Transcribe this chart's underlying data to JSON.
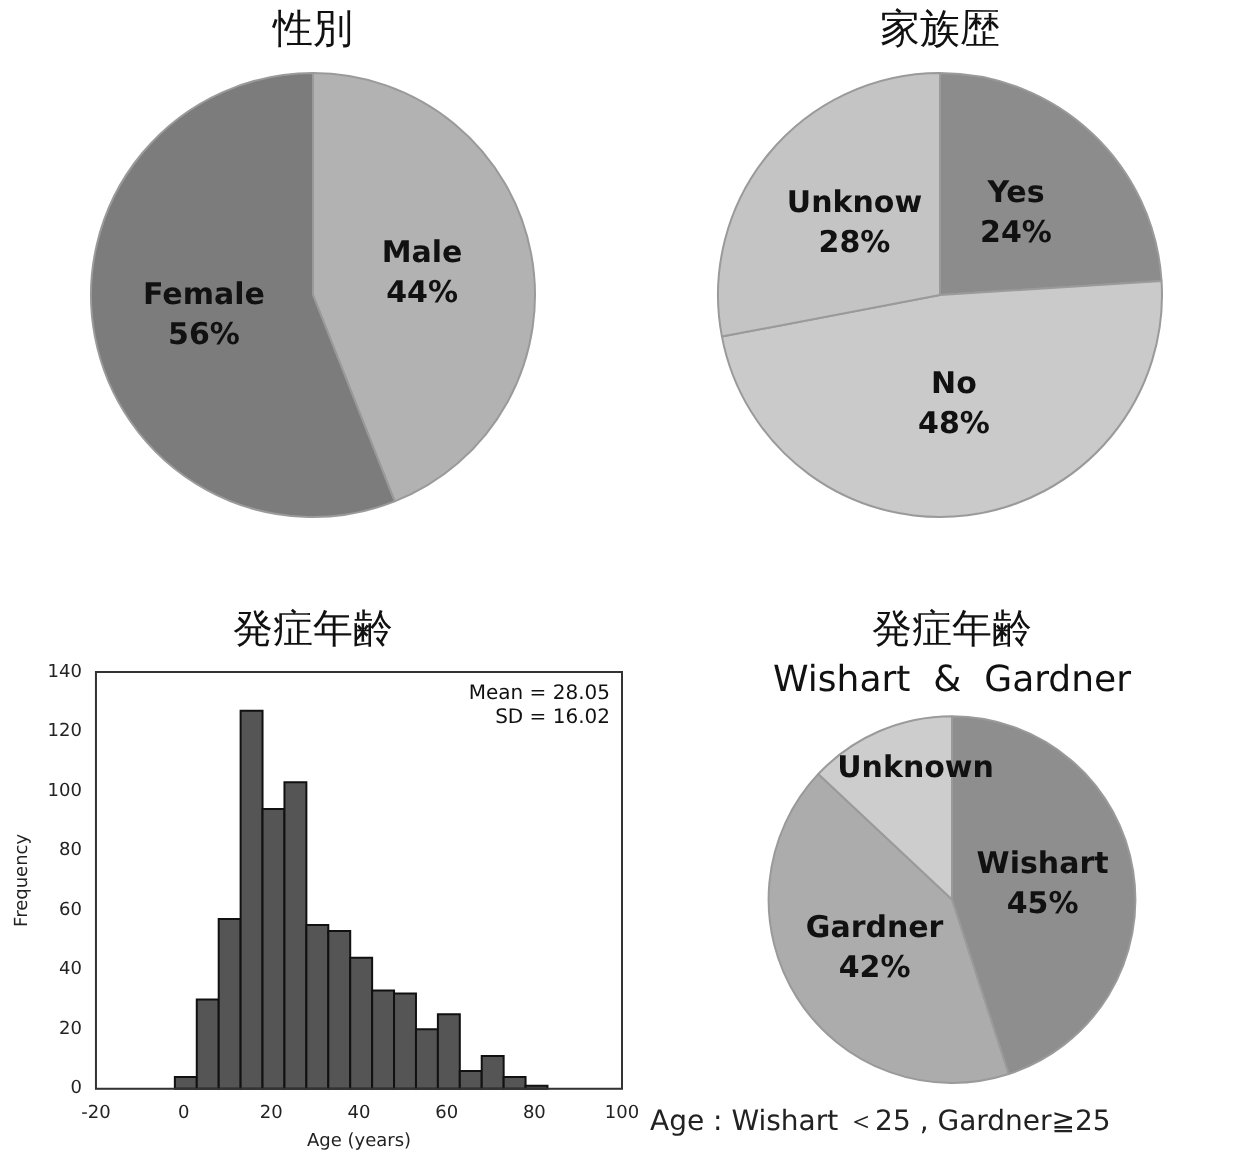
{
  "chart_data": [
    {
      "type": "pie",
      "title": "性別",
      "categories": [
        "Male",
        "Female"
      ],
      "values": [
        44,
        56
      ],
      "colors": [
        "#b2b2b2",
        "#7c7c7c"
      ],
      "value_labels": [
        "44%",
        "56%"
      ],
      "legend": false
    },
    {
      "type": "pie",
      "title": "家族歴",
      "categories": [
        "Yes",
        "No",
        "Unknow"
      ],
      "values": [
        24,
        48,
        28
      ],
      "colors": [
        "#8c8c8c",
        "#cacaca",
        "#c4c4c4"
      ],
      "value_labels": [
        "24%",
        "48%",
        "28%"
      ],
      "legend": false
    },
    {
      "type": "histogram",
      "title": "発症年齢",
      "xlabel": "Age (years)",
      "ylabel": "Frequency",
      "bins": [
        -2,
        3,
        8,
        13,
        18,
        23,
        28,
        33,
        38,
        43,
        48,
        53,
        58,
        63,
        68,
        73,
        78,
        83
      ],
      "values": [
        4,
        30,
        57,
        127,
        94,
        103,
        55,
        53,
        44,
        33,
        32,
        20,
        25,
        6,
        11,
        4,
        1
      ],
      "color": "#555555",
      "xlim": [
        -20,
        100
      ],
      "xticks": [
        -20,
        0,
        20,
        40,
        60,
        80,
        100
      ],
      "ylim": [
        0,
        140
      ],
      "yticks": [
        0,
        20,
        40,
        60,
        80,
        100,
        120,
        140
      ],
      "grid": false,
      "legend": false,
      "annotations": [
        "Mean = 28.05",
        "SD = 16.02"
      ]
    },
    {
      "type": "pie",
      "title": "発症年齢",
      "subtitle": "Wishart  &  Gardner",
      "categories": [
        "Wishart",
        "Gardner",
        "Unknown"
      ],
      "values": [
        45,
        42,
        13
      ],
      "colors": [
        "#8e8e8e",
        "#acacac",
        "#cdcdcd"
      ],
      "value_labels": [
        "45%",
        "42%",
        null
      ],
      "legend": false,
      "annotations": [
        "Age :  Wishart ＜25 ,  Gardner≧25"
      ]
    }
  ]
}
